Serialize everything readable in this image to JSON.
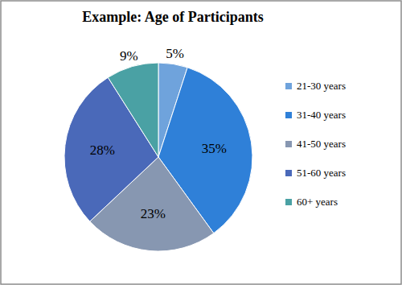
{
  "chart_data": {
    "type": "pie",
    "title": "Example: Age of Participants",
    "categories": [
      "21-30 years",
      "31-40 years",
      "41-50 years",
      "51-60 years",
      "60+ years"
    ],
    "values": [
      5,
      35,
      23,
      28,
      9
    ],
    "value_labels": [
      "5%",
      "35%",
      "23%",
      "28%",
      "9%"
    ],
    "colors": [
      "#6fa3dc",
      "#2f80d8",
      "#8797b1",
      "#4a69b9",
      "#4aa1a4"
    ],
    "data_labels": true,
    "legend": "right"
  }
}
